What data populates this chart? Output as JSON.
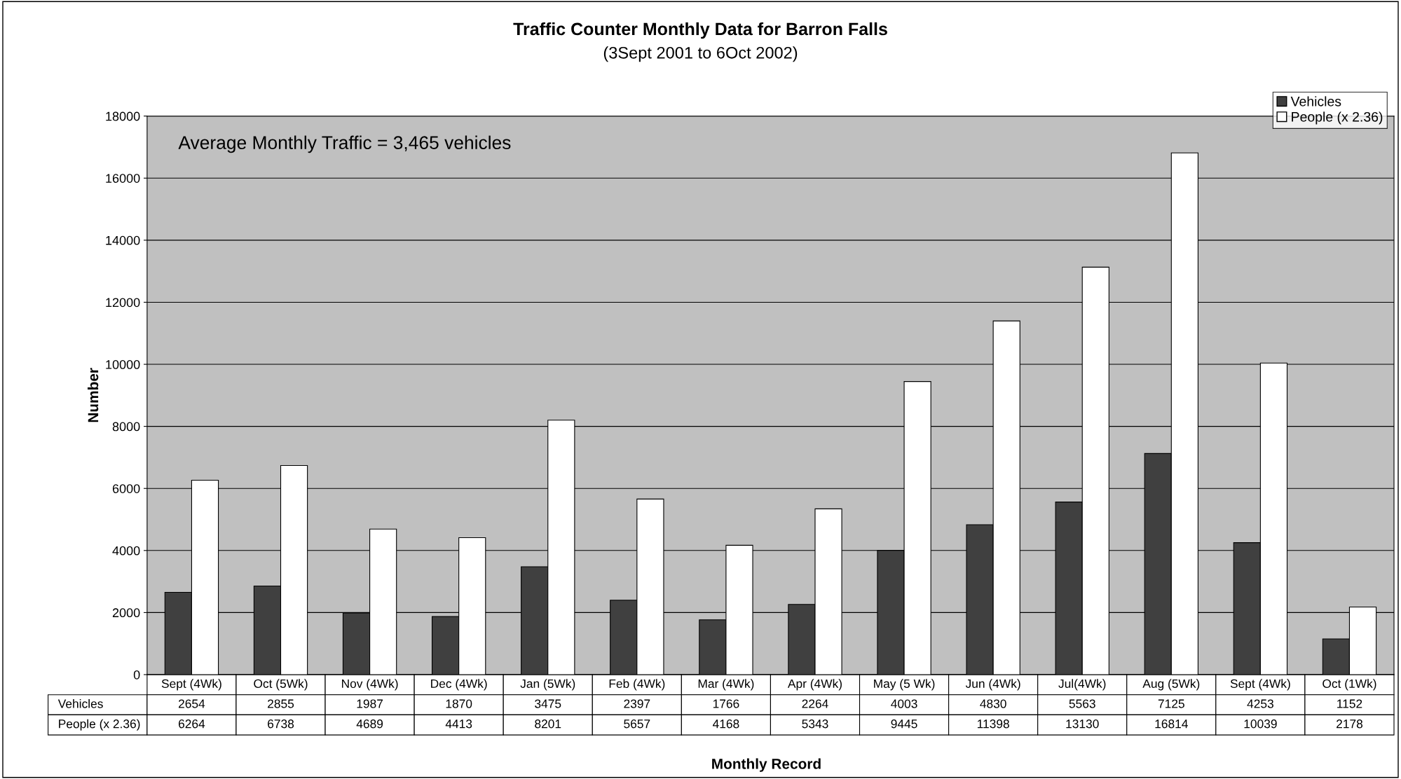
{
  "chart_data": {
    "type": "bar",
    "title": "Traffic Counter Monthly Data for Barron Falls",
    "subtitle": "(3Sept 2001 to 6Oct 2002)",
    "xlabel": "Monthly Record",
    "ylabel": "Number",
    "annotations": [
      "Average Monthly Traffic = 3,465 vehicles"
    ],
    "categories": [
      "Sept (4Wk)",
      "Oct (5Wk)",
      "Nov (4Wk)",
      "Dec (4Wk)",
      "Jan (5Wk)",
      "Feb (4Wk)",
      "Mar (4Wk)",
      "Apr (4Wk)",
      "May (5 Wk)",
      "Jun (4Wk)",
      "Jul(4Wk)",
      "Aug (5Wk)",
      "Sept (4Wk)",
      "Oct (1Wk)"
    ],
    "series": [
      {
        "name": "Vehicles",
        "color": "#404040",
        "values": [
          2654,
          2855,
          1987,
          1870,
          3475,
          2397,
          1766,
          2264,
          4003,
          4830,
          5563,
          7125,
          4253,
          1152
        ]
      },
      {
        "name": "People (x 2.36)",
        "color": "#ffffff",
        "values": [
          6264,
          6738,
          4689,
          4413,
          8201,
          5657,
          4168,
          5343,
          9445,
          11398,
          13130,
          16814,
          10039,
          2178
        ]
      }
    ],
    "ylim": [
      0,
      18000
    ],
    "yticks": [
      0,
      2000,
      4000,
      6000,
      8000,
      10000,
      12000,
      14000,
      16000,
      18000
    ],
    "grid": "y",
    "legend": "top right",
    "data_labels": true
  }
}
